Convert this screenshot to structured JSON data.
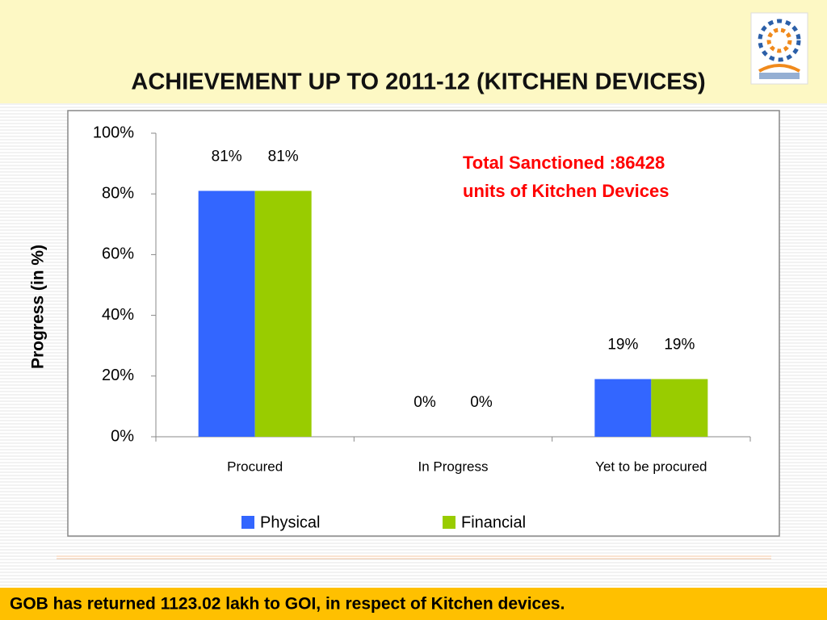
{
  "chart_data": {
    "type": "bar",
    "title": "ACHIEVEMENT UP TO 2011-12 (KITCHEN DEVICES)",
    "y_label": "Progress (in %)",
    "annotation": [
      "Total Sanctioned :86428",
      "units of Kitchen Devices"
    ],
    "categories": [
      "Procured",
      "In Progress",
      "Yet to be procured"
    ],
    "series": [
      {
        "name": "Physical",
        "color": "#3366ff",
        "values": [
          81,
          0,
          19
        ],
        "value_labels": [
          "81%",
          "0%",
          "19%"
        ]
      },
      {
        "name": "Financial",
        "color": "#99cc00",
        "values": [
          81,
          0,
          19
        ],
        "value_labels": [
          "81%",
          "0%",
          "19%"
        ]
      }
    ],
    "ylim": [
      0,
      100
    ],
    "yticks": [
      {
        "value": 0,
        "label": "0%"
      },
      {
        "value": 20,
        "label": "20%"
      },
      {
        "value": 40,
        "label": "40%"
      },
      {
        "value": 60,
        "label": "60%"
      },
      {
        "value": 80,
        "label": "80%"
      },
      {
        "value": 100,
        "label": "100%"
      }
    ],
    "legend": "bottom"
  },
  "footer": "GOB has returned 1123.02 lakh to GOI, in respect of Kitchen devices."
}
